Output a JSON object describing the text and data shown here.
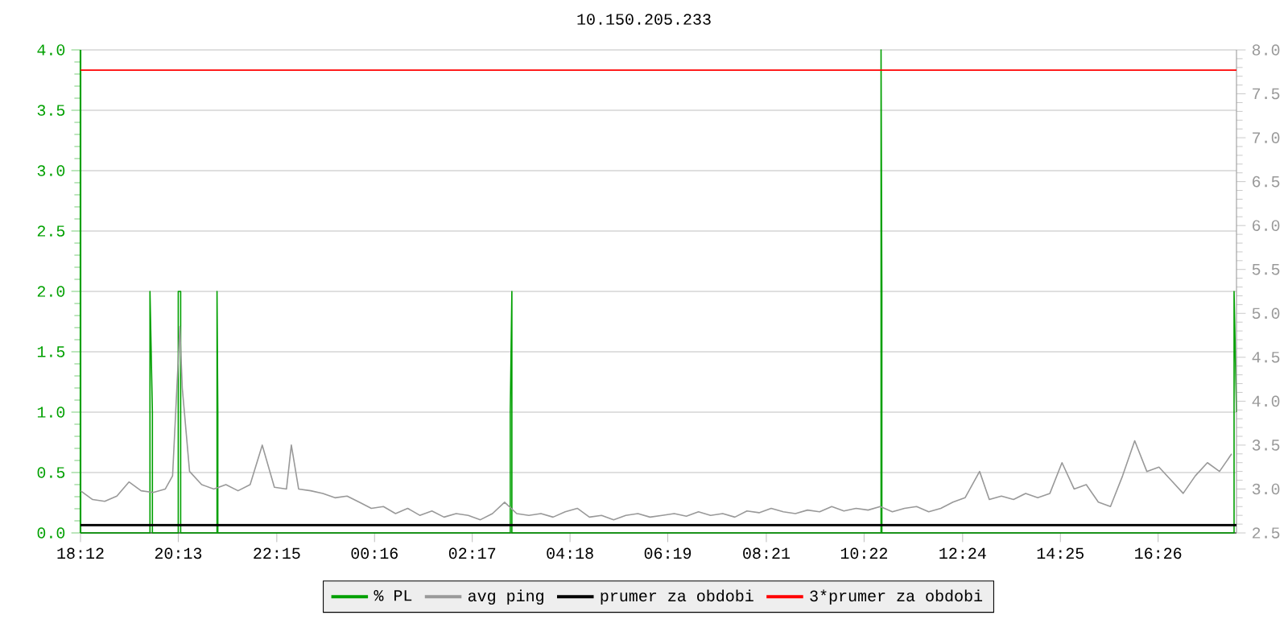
{
  "chart_data": {
    "type": "line",
    "title": "10.150.205.233",
    "xlim": [
      "--01-01T18:12",
      "--01-02T18:03"
    ],
    "xticks": [
      {
        "value": "--01-01T18:12",
        "label": "18:12"
      },
      {
        "value": "--01-01T20:13",
        "label": "20:13"
      },
      {
        "value": "--01-01T22:15",
        "label": "22:15"
      },
      {
        "value": "--01-02T00:16",
        "label": "00:16"
      },
      {
        "value": "--01-02T02:17",
        "label": "02:17"
      },
      {
        "value": "--01-02T04:18",
        "label": "04:18"
      },
      {
        "value": "--01-02T06:19",
        "label": "06:19"
      },
      {
        "value": "--01-02T08:21",
        "label": "08:21"
      },
      {
        "value": "--01-02T10:22",
        "label": "10:22"
      },
      {
        "value": "--01-02T12:24",
        "label": "12:24"
      },
      {
        "value": "--01-02T14:25",
        "label": "14:25"
      },
      {
        "value": "--01-02T16:26",
        "label": "16:26"
      }
    ],
    "ylim": [
      0,
      4
    ],
    "yticks": [
      {
        "value": 0,
        "label": "0.0"
      },
      0.5,
      {
        "value": 1,
        "label": "1.0"
      },
      1.5,
      {
        "value": 2,
        "label": "2.0"
      },
      2.5,
      {
        "value": 3,
        "label": "3.0"
      },
      3.5,
      {
        "value": 4,
        "label": "4.0"
      }
    ],
    "y2lim": [
      2.5,
      8
    ],
    "y2ticks": [
      2.5,
      {
        "value": 3,
        "label": "3.0"
      },
      3.5,
      {
        "value": 4,
        "label": "4.0"
      },
      4.5,
      {
        "value": 5,
        "label": "5.0"
      },
      5.5,
      {
        "value": 6,
        "label": "6.0"
      },
      6.5,
      {
        "value": 7,
        "label": "7.0"
      },
      7.5,
      {
        "value": 8,
        "label": "8.0"
      }
    ],
    "grid": "y",
    "legend": "bottom",
    "marker": "none",
    "line_style": "solid",
    "series": [
      {
        "name": "% PL",
        "color": "#00a000",
        "x": [
          "--01-01T18:12",
          "--01-01T19:38",
          "--01-01T19:38",
          "--01-01T19:41",
          "--01-01T19:41",
          "--01-01T20:13",
          "--01-01T20:13",
          "--01-01T20:16",
          "--01-01T20:16",
          "--01-01T21:01",
          "--01-01T21:01",
          "--01-01T21:02",
          "--01-01T21:02",
          "--01-02T03:04",
          "--01-02T03:04",
          "--01-02T03:06",
          "--01-02T03:06",
          "--01-02T10:43",
          "--01-02T10:43",
          "--01-02T10:44",
          "--01-02T10:44",
          "--01-02T18:00",
          "--01-02T18:00",
          "--01-02T18:03"
        ],
        "values": [
          0,
          0,
          2,
          1,
          0,
          0,
          2,
          2,
          0,
          0,
          2,
          1,
          0,
          0,
          1,
          2,
          0,
          0,
          4,
          2,
          0,
          0,
          2,
          1
        ]
      },
      {
        "name": "avg ping",
        "color": "#999999",
        "axis": "y2",
        "x": [
          "--01-01T18:12",
          "--01-01T18:27",
          "--01-01T18:42",
          "--01-01T18:57",
          "--01-01T19:12",
          "--01-01T19:27",
          "--01-01T19:42",
          "--01-01T19:57",
          "--01-01T20:06",
          "--01-01T20:15",
          "--01-01T20:18",
          "--01-01T20:27",
          "--01-01T20:42",
          "--01-01T20:57",
          "--01-01T21:12",
          "--01-01T21:27",
          "--01-01T21:42",
          "--01-01T21:57",
          "--01-01T22:12",
          "--01-01T22:27",
          "--01-01T22:33",
          "--01-01T22:42",
          "--01-01T22:57",
          "--01-01T23:12",
          "--01-01T23:27",
          "--01-01T23:42",
          "--01-01T23:57",
          "--01-02T00:12",
          "--01-02T00:27",
          "--01-02T00:42",
          "--01-02T00:57",
          "--01-02T01:12",
          "--01-02T01:27",
          "--01-02T01:42",
          "--01-02T01:57",
          "--01-02T02:12",
          "--01-02T02:27",
          "--01-02T02:42",
          "--01-02T02:57",
          "--01-02T03:12",
          "--01-02T03:27",
          "--01-02T03:42",
          "--01-02T03:57",
          "--01-02T04:12",
          "--01-02T04:27",
          "--01-02T04:42",
          "--01-02T04:57",
          "--01-02T05:12",
          "--01-02T05:27",
          "--01-02T05:42",
          "--01-02T05:57",
          "--01-02T06:12",
          "--01-02T06:27",
          "--01-02T06:42",
          "--01-02T06:57",
          "--01-02T07:12",
          "--01-02T07:27",
          "--01-02T07:42",
          "--01-02T07:57",
          "--01-02T08:12",
          "--01-02T08:27",
          "--01-02T08:42",
          "--01-02T08:57",
          "--01-02T09:12",
          "--01-02T09:27",
          "--01-02T09:42",
          "--01-02T09:57",
          "--01-02T10:12",
          "--01-02T10:27",
          "--01-02T10:42",
          "--01-02T10:57",
          "--01-02T11:12",
          "--01-02T11:27",
          "--01-02T11:42",
          "--01-02T11:57",
          "--01-02T12:12",
          "--01-02T12:27",
          "--01-02T12:45",
          "--01-02T12:57",
          "--01-02T13:12",
          "--01-02T13:27",
          "--01-02T13:42",
          "--01-02T13:57",
          "--01-02T14:12",
          "--01-02T14:27",
          "--01-02T14:42",
          "--01-02T14:57",
          "--01-02T15:12",
          "--01-02T15:27",
          "--01-02T15:42",
          "--01-02T15:57",
          "--01-02T16:12",
          "--01-02T16:27",
          "--01-02T16:42",
          "--01-02T16:57",
          "--01-02T17:12",
          "--01-02T17:27",
          "--01-02T17:42",
          "--01-02T17:57"
        ],
        "values": [
          2.98,
          2.88,
          2.86,
          2.92,
          3.08,
          2.98,
          2.96,
          3.0,
          3.15,
          4.85,
          4.15,
          3.2,
          3.05,
          3.0,
          3.05,
          2.98,
          3.05,
          3.5,
          3.02,
          3.0,
          3.5,
          3.0,
          2.98,
          2.95,
          2.9,
          2.92,
          2.85,
          2.78,
          2.8,
          2.72,
          2.78,
          2.7,
          2.75,
          2.68,
          2.72,
          2.7,
          2.65,
          2.72,
          2.85,
          2.72,
          2.7,
          2.72,
          2.68,
          2.74,
          2.78,
          2.68,
          2.7,
          2.65,
          2.7,
          2.72,
          2.68,
          2.7,
          2.72,
          2.69,
          2.74,
          2.7,
          2.72,
          2.68,
          2.75,
          2.73,
          2.78,
          2.74,
          2.72,
          2.76,
          2.74,
          2.8,
          2.75,
          2.78,
          2.76,
          2.8,
          2.74,
          2.78,
          2.8,
          2.74,
          2.78,
          2.85,
          2.9,
          3.2,
          2.88,
          2.92,
          2.88,
          2.95,
          2.9,
          2.95,
          3.3,
          3.0,
          3.05,
          2.85,
          2.8,
          3.15,
          3.55,
          3.2,
          3.25,
          3.1,
          2.95,
          3.15,
          3.3,
          3.2,
          3.4
        ]
      },
      {
        "name": "prumer za obdobi",
        "color": "#000000",
        "axis": "y2",
        "x": [
          "--01-01T18:12",
          "--01-02T18:03"
        ],
        "values": [
          2.59,
          2.59
        ]
      },
      {
        "name": "3*prumer za obdobi",
        "color": "#ff0000",
        "axis": "y2",
        "x": [
          "--01-01T18:12",
          "--01-02T18:03"
        ],
        "values": [
          7.77,
          7.77
        ]
      }
    ]
  }
}
